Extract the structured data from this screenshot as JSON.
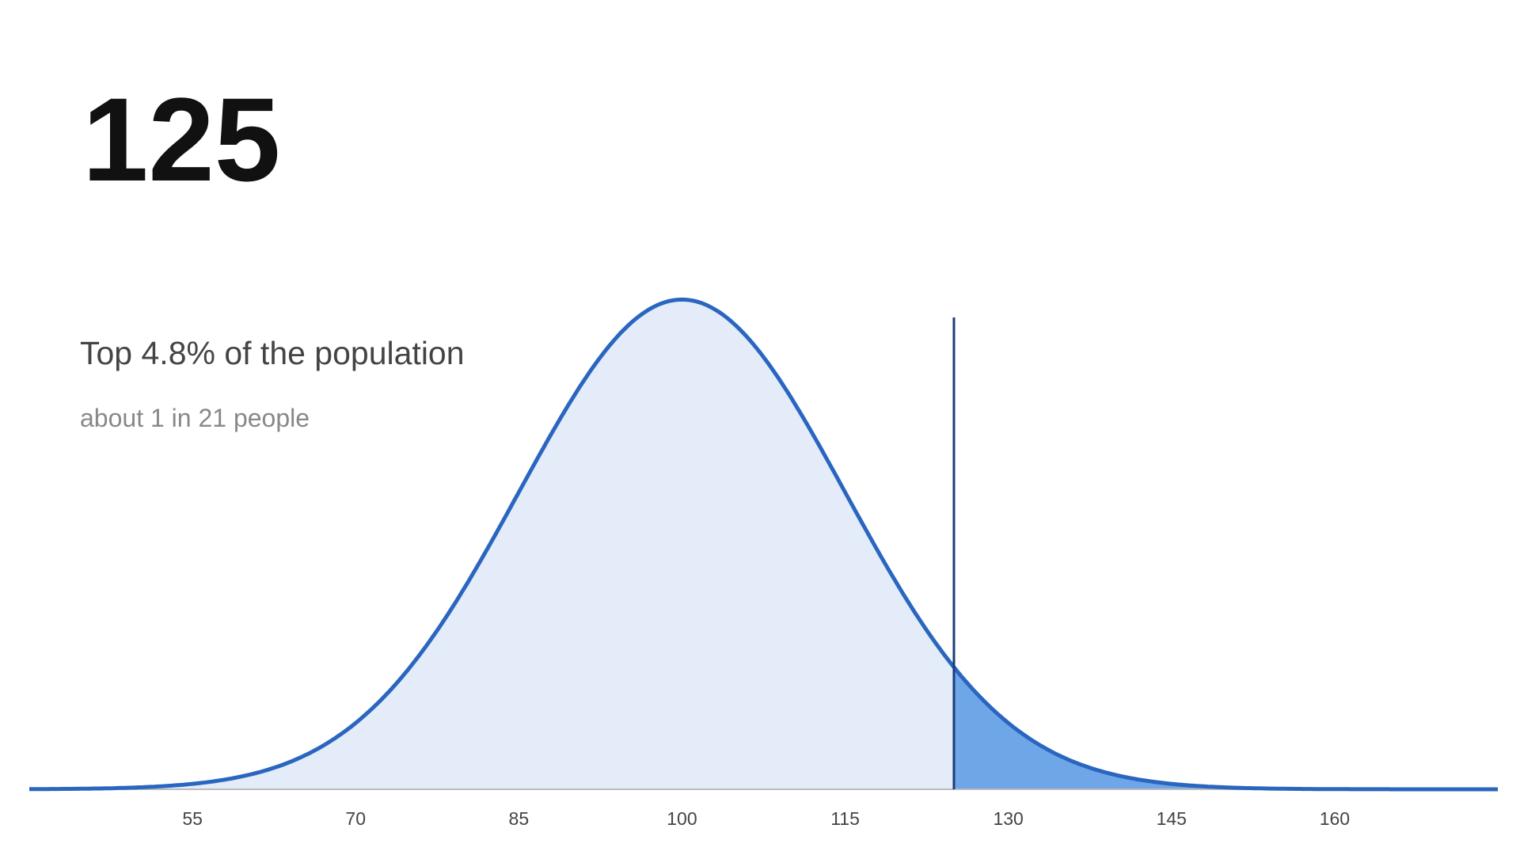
{
  "chart_data": {
    "type": "normal",
    "marker": 125,
    "subtitle": "Top 4.8% of the population",
    "note": "about 1 in 21 people",
    "mean": 100,
    "sd": 15,
    "xlim": [
      40,
      175
    ],
    "xticks": [
      55,
      70,
      85,
      100,
      115,
      130,
      145,
      160
    ],
    "ylim": [
      0,
      0.027
    ],
    "line_color": "#2a66c0",
    "fill_color": "#e3ecf8",
    "tail_color": "#6ea6e8",
    "marker_color": "#1b3d7a"
  }
}
